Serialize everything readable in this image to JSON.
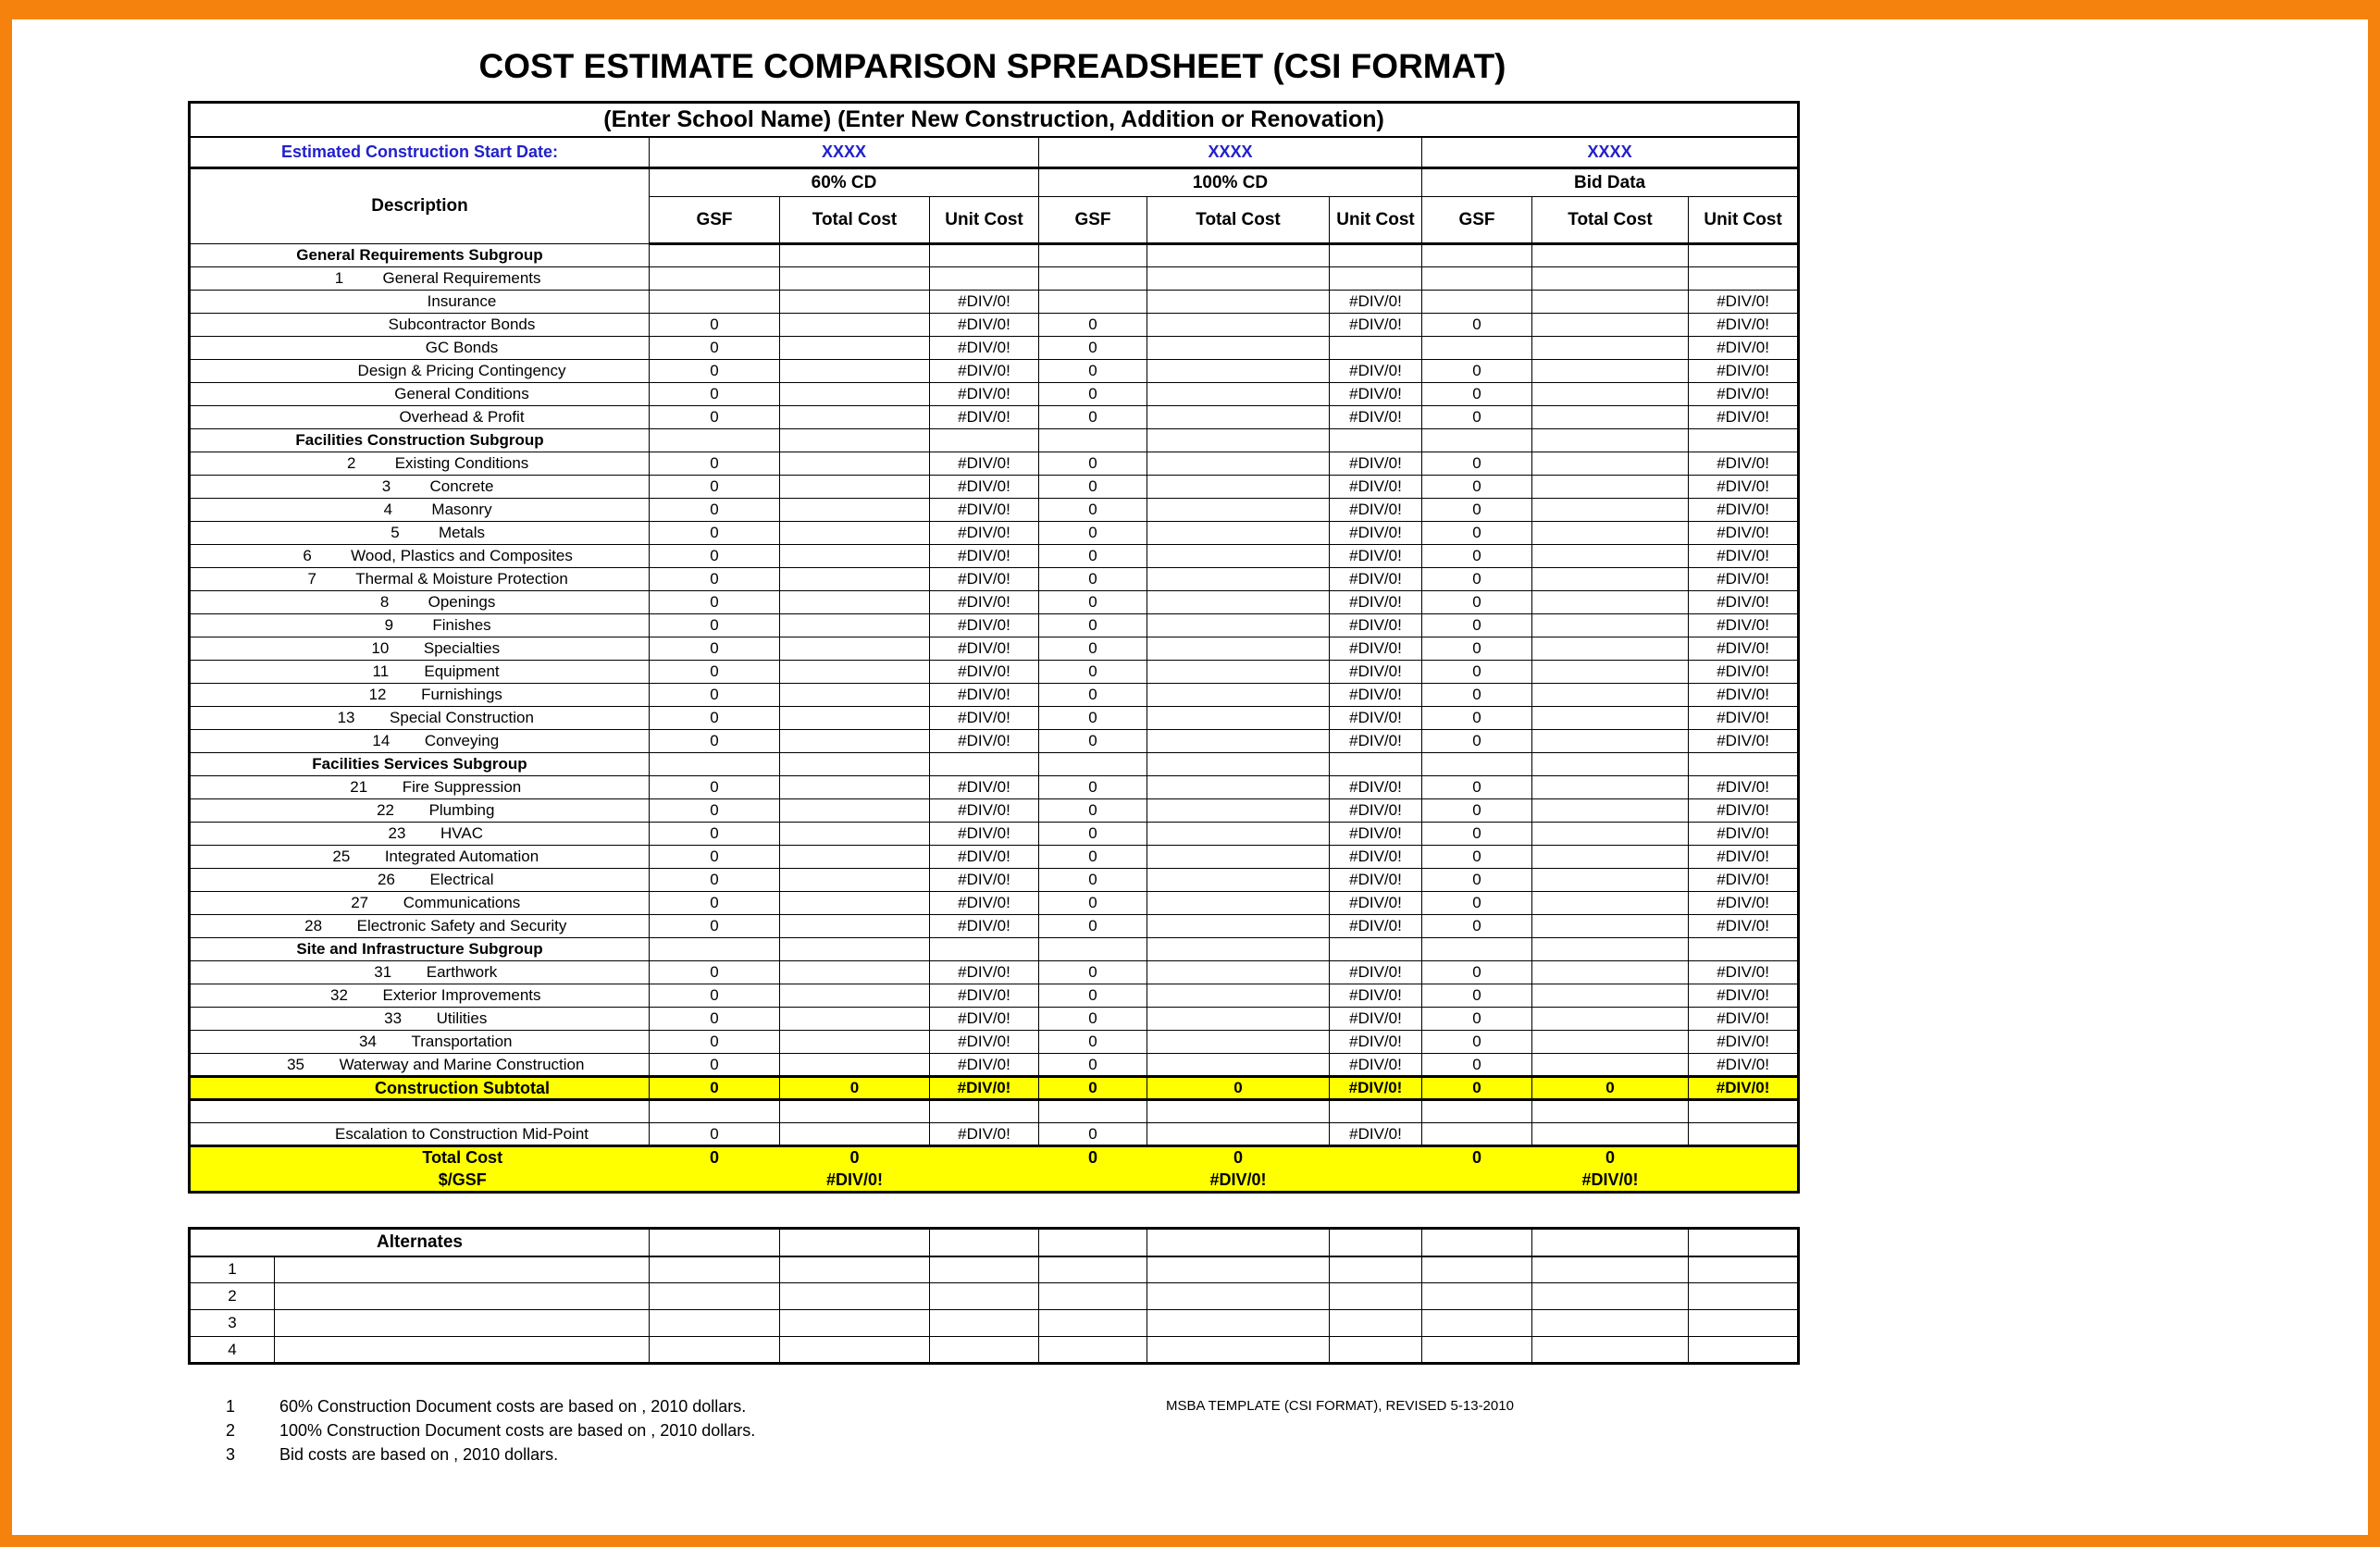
{
  "page": {
    "title": "COST ESTIMATE COMPARISON SPREADSHEET (CSI FORMAT)"
  },
  "colors": {
    "frame_orange": "#F5820D",
    "text_blue": "#2121CC",
    "highlight_yellow": "#FFFF00"
  },
  "spreadsheet": {
    "school_header": "(Enter School Name) (Enter New Construction, Addition or Renovation)",
    "start_date_label": "Estimated Construction Start Date:",
    "start_dates": [
      "XXXX",
      "XXXX",
      "XXXX"
    ],
    "groups": [
      "60% CD",
      "100% CD",
      "Bid Data"
    ],
    "description_header": "Description",
    "sub_headers": [
      "GSF",
      "Total Cost",
      "Unit Cost"
    ],
    "rows": [
      {
        "type": "subgroup",
        "label": "General Requirements Subgroup"
      },
      {
        "type": "item",
        "num": "1",
        "desc": "General Requirements",
        "cells": [
          "",
          "",
          "",
          "",
          "",
          "",
          "",
          "",
          ""
        ]
      },
      {
        "type": "item",
        "num": "",
        "desc": "Insurance",
        "cells": [
          "",
          "",
          "#DIV/0!",
          "",
          "",
          "#DIV/0!",
          "",
          "",
          "#DIV/0!"
        ]
      },
      {
        "type": "item",
        "num": "",
        "desc": "Subcontractor Bonds",
        "cells": [
          "0",
          "",
          "#DIV/0!",
          "0",
          "",
          "#DIV/0!",
          "0",
          "",
          "#DIV/0!"
        ]
      },
      {
        "type": "item",
        "num": "",
        "desc": "GC Bonds",
        "cells": [
          "0",
          "",
          "#DIV/0!",
          "0",
          "",
          "",
          "",
          "",
          "#DIV/0!"
        ]
      },
      {
        "type": "item",
        "num": "",
        "desc": "Design & Pricing Contingency",
        "cells": [
          "0",
          "",
          "#DIV/0!",
          "0",
          "",
          "#DIV/0!",
          "0",
          "",
          "#DIV/0!"
        ]
      },
      {
        "type": "item",
        "num": "",
        "desc": "General Conditions",
        "cells": [
          "0",
          "",
          "#DIV/0!",
          "0",
          "",
          "#DIV/0!",
          "0",
          "",
          "#DIV/0!"
        ]
      },
      {
        "type": "item",
        "num": "",
        "desc": "Overhead & Profit",
        "cells": [
          "0",
          "",
          "#DIV/0!",
          "0",
          "",
          "#DIV/0!",
          "0",
          "",
          "#DIV/0!"
        ]
      },
      {
        "type": "subgroup",
        "label": "Facilities Construction Subgroup"
      },
      {
        "type": "item",
        "num": "2",
        "desc": "Existing Conditions",
        "cells": [
          "0",
          "",
          "#DIV/0!",
          "0",
          "",
          "#DIV/0!",
          "0",
          "",
          "#DIV/0!"
        ]
      },
      {
        "type": "item",
        "num": "3",
        "desc": "Concrete",
        "cells": [
          "0",
          "",
          "#DIV/0!",
          "0",
          "",
          "#DIV/0!",
          "0",
          "",
          "#DIV/0!"
        ]
      },
      {
        "type": "item",
        "num": "4",
        "desc": "Masonry",
        "cells": [
          "0",
          "",
          "#DIV/0!",
          "0",
          "",
          "#DIV/0!",
          "0",
          "",
          "#DIV/0!"
        ]
      },
      {
        "type": "item",
        "num": "5",
        "desc": "Metals",
        "cells": [
          "0",
          "",
          "#DIV/0!",
          "0",
          "",
          "#DIV/0!",
          "0",
          "",
          "#DIV/0!"
        ]
      },
      {
        "type": "item",
        "num": "6",
        "desc": "Wood, Plastics and Composites",
        "cells": [
          "0",
          "",
          "#DIV/0!",
          "0",
          "",
          "#DIV/0!",
          "0",
          "",
          "#DIV/0!"
        ]
      },
      {
        "type": "item",
        "num": "7",
        "desc": "Thermal & Moisture Protection",
        "cells": [
          "0",
          "",
          "#DIV/0!",
          "0",
          "",
          "#DIV/0!",
          "0",
          "",
          "#DIV/0!"
        ]
      },
      {
        "type": "item",
        "num": "8",
        "desc": "Openings",
        "cells": [
          "0",
          "",
          "#DIV/0!",
          "0",
          "",
          "#DIV/0!",
          "0",
          "",
          "#DIV/0!"
        ]
      },
      {
        "type": "item",
        "num": "9",
        "desc": "Finishes",
        "cells": [
          "0",
          "",
          "#DIV/0!",
          "0",
          "",
          "#DIV/0!",
          "0",
          "",
          "#DIV/0!"
        ]
      },
      {
        "type": "item",
        "num": "10",
        "desc": "Specialties",
        "cells": [
          "0",
          "",
          "#DIV/0!",
          "0",
          "",
          "#DIV/0!",
          "0",
          "",
          "#DIV/0!"
        ]
      },
      {
        "type": "item",
        "num": "11",
        "desc": "Equipment",
        "cells": [
          "0",
          "",
          "#DIV/0!",
          "0",
          "",
          "#DIV/0!",
          "0",
          "",
          "#DIV/0!"
        ]
      },
      {
        "type": "item",
        "num": "12",
        "desc": "Furnishings",
        "cells": [
          "0",
          "",
          "#DIV/0!",
          "0",
          "",
          "#DIV/0!",
          "0",
          "",
          "#DIV/0!"
        ]
      },
      {
        "type": "item",
        "num": "13",
        "desc": "Special Construction",
        "cells": [
          "0",
          "",
          "#DIV/0!",
          "0",
          "",
          "#DIV/0!",
          "0",
          "",
          "#DIV/0!"
        ]
      },
      {
        "type": "item",
        "num": "14",
        "desc": "Conveying",
        "cells": [
          "0",
          "",
          "#DIV/0!",
          "0",
          "",
          "#DIV/0!",
          "0",
          "",
          "#DIV/0!"
        ]
      },
      {
        "type": "subgroup",
        "label": "Facilities Services Subgroup"
      },
      {
        "type": "item",
        "num": "21",
        "desc": "Fire Suppression",
        "cells": [
          "0",
          "",
          "#DIV/0!",
          "0",
          "",
          "#DIV/0!",
          "0",
          "",
          "#DIV/0!"
        ]
      },
      {
        "type": "item",
        "num": "22",
        "desc": "Plumbing",
        "cells": [
          "0",
          "",
          "#DIV/0!",
          "0",
          "",
          "#DIV/0!",
          "0",
          "",
          "#DIV/0!"
        ]
      },
      {
        "type": "item",
        "num": "23",
        "desc": "HVAC",
        "cells": [
          "0",
          "",
          "#DIV/0!",
          "0",
          "",
          "#DIV/0!",
          "0",
          "",
          "#DIV/0!"
        ]
      },
      {
        "type": "item",
        "num": "25",
        "desc": "Integrated Automation",
        "cells": [
          "0",
          "",
          "#DIV/0!",
          "0",
          "",
          "#DIV/0!",
          "0",
          "",
          "#DIV/0!"
        ]
      },
      {
        "type": "item",
        "num": "26",
        "desc": "Electrical",
        "cells": [
          "0",
          "",
          "#DIV/0!",
          "0",
          "",
          "#DIV/0!",
          "0",
          "",
          "#DIV/0!"
        ]
      },
      {
        "type": "item",
        "num": "27",
        "desc": "Communications",
        "cells": [
          "0",
          "",
          "#DIV/0!",
          "0",
          "",
          "#DIV/0!",
          "0",
          "",
          "#DIV/0!"
        ]
      },
      {
        "type": "item",
        "num": "28",
        "desc": "Electronic Safety and Security",
        "cells": [
          "0",
          "",
          "#DIV/0!",
          "0",
          "",
          "#DIV/0!",
          "0",
          "",
          "#DIV/0!"
        ]
      },
      {
        "type": "subgroup",
        "label": "Site and Infrastructure Subgroup"
      },
      {
        "type": "item",
        "num": "31",
        "desc": "Earthwork",
        "cells": [
          "0",
          "",
          "#DIV/0!",
          "0",
          "",
          "#DIV/0!",
          "0",
          "",
          "#DIV/0!"
        ]
      },
      {
        "type": "item",
        "num": "32",
        "desc": "Exterior Improvements",
        "cells": [
          "0",
          "",
          "#DIV/0!",
          "0",
          "",
          "#DIV/0!",
          "0",
          "",
          "#DIV/0!"
        ]
      },
      {
        "type": "item",
        "num": "33",
        "desc": "Utilities",
        "cells": [
          "0",
          "",
          "#DIV/0!",
          "0",
          "",
          "#DIV/0!",
          "0",
          "",
          "#DIV/0!"
        ]
      },
      {
        "type": "item",
        "num": "34",
        "desc": "Transportation",
        "cells": [
          "0",
          "",
          "#DIV/0!",
          "0",
          "",
          "#DIV/0!",
          "0",
          "",
          "#DIV/0!"
        ]
      },
      {
        "type": "item",
        "num": "35",
        "desc": "Waterway and Marine Construction",
        "cells": [
          "0",
          "",
          "#DIV/0!",
          "0",
          "",
          "#DIV/0!",
          "0",
          "",
          "#DIV/0!"
        ]
      },
      {
        "type": "subtotal",
        "label": "Construction Subtotal",
        "cells": [
          "0",
          "0",
          "#DIV/0!",
          "0",
          "0",
          "#DIV/0!",
          "0",
          "0",
          "#DIV/0!"
        ]
      },
      {
        "type": "spacer"
      },
      {
        "type": "item",
        "num": "",
        "desc": "Escalation to Construction Mid-Point",
        "cells": [
          "0",
          "",
          "#DIV/0!",
          "0",
          "",
          "#DIV/0!",
          "",
          "",
          ""
        ]
      },
      {
        "type": "total",
        "label": "Total Cost",
        "cells": [
          "0",
          "0",
          "",
          "0",
          "0",
          "",
          "0",
          "0",
          ""
        ]
      },
      {
        "type": "gsf",
        "label": "$/GSF",
        "cells": [
          "",
          "#DIV/0!",
          "",
          "",
          "#DIV/0!",
          "",
          "",
          "#DIV/0!",
          ""
        ]
      }
    ]
  },
  "alternates": {
    "title": "Alternates",
    "rows": [
      "1",
      "2",
      "3",
      "4"
    ]
  },
  "footnotes": [
    {
      "num": "1",
      "text": "60% Construction Document costs are based on  , 2010 dollars."
    },
    {
      "num": "2",
      "text": "100% Construction Document costs are based on  , 2010 dollars."
    },
    {
      "num": "3",
      "text": "Bid costs are based on  , 2010 dollars."
    }
  ],
  "template_note": "MSBA TEMPLATE (CSI FORMAT), REVISED  5-13-2010"
}
